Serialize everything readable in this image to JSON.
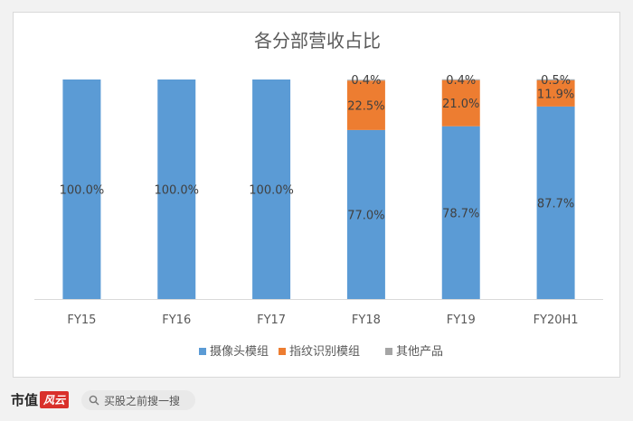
{
  "chart_data": {
    "type": "bar",
    "stacked": true,
    "title": "各分部营收占比",
    "categories": [
      "FY15",
      "FY16",
      "FY17",
      "FY18",
      "FY19",
      "FY20H1"
    ],
    "series": [
      {
        "name": "摄像头模组",
        "color": "#5b9bd5",
        "values": [
          100.0,
          100.0,
          100.0,
          77.0,
          78.7,
          87.7
        ]
      },
      {
        "name": "指纹识别模组",
        "color": "#ed7d31",
        "values": [
          0,
          0,
          0,
          22.5,
          21.0,
          11.9
        ]
      },
      {
        "name": "其他产品",
        "color": "#a5a5a5",
        "values": [
          0,
          0,
          0,
          0.4,
          0.4,
          0.5
        ]
      }
    ],
    "data_labels": [
      [
        "100.0%",
        "100.0%",
        "100.0%",
        "77.0%",
        "78.7%",
        "87.7%"
      ],
      [
        "",
        "",
        "",
        "22.5%",
        "21.0%",
        "11.9%"
      ],
      [
        "",
        "",
        "",
        "0.4%",
        "0.4%",
        "0.5%"
      ]
    ],
    "ylim": [
      0,
      100
    ],
    "legend_position": "bottom",
    "grid": false
  },
  "footer": {
    "brand_text": "市值",
    "brand_mark": "风云",
    "search_placeholder": "买股之前搜一搜",
    "search_icon": "search-icon"
  }
}
